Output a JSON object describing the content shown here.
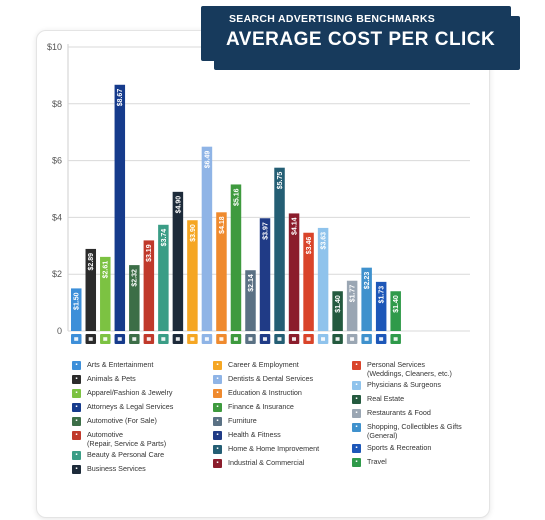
{
  "header": {
    "subtitle": "SEARCH ADVERTISING BENCHMARKS",
    "title": "AVERAGE COST PER CLICK"
  },
  "chart_data": {
    "type": "bar",
    "title": "AVERAGE COST PER CLICK",
    "subtitle": "SEARCH ADVERTISING BENCHMARKS",
    "ylim": [
      0,
      10
    ],
    "yticks": [
      0,
      2,
      4,
      6,
      8,
      10
    ],
    "ytick_labels": [
      "0",
      "$2",
      "$4",
      "$6",
      "$8",
      "$10"
    ],
    "grid": true,
    "legend_position": "bottom",
    "categories": [
      "Arts & Entertainment",
      "Animals & Pets",
      "Apparel/Fashion & Jewelry",
      "Attorneys & Legal Services",
      "Automotive (For Sale)",
      "Automotive\n(Repair, Service & Parts)",
      "Beauty & Personal Care",
      "Business Services",
      "Career & Employment",
      "Dentists & Dental Services",
      "Education & Instruction",
      "Finance & Insurance",
      "Furniture",
      "Health & Fitness",
      "Home & Home Improvement",
      "Industrial & Commercial",
      "Personal Services\n(Weddings, Cleaners, etc.)",
      "Physicians & Surgeons",
      "Real Estate",
      "Restaurants & Food",
      "Shopping, Collectibles & Gifts\n(General)",
      "Sports & Recreation",
      "Travel"
    ],
    "values": [
      1.5,
      2.89,
      2.61,
      8.67,
      2.32,
      3.19,
      3.74,
      4.9,
      3.9,
      6.49,
      4.18,
      5.16,
      2.14,
      3.97,
      5.75,
      4.14,
      3.46,
      3.63,
      1.4,
      1.77,
      2.23,
      1.73,
      1.4
    ],
    "value_labels": [
      "$1.50",
      "$2.89",
      "$2.61",
      "$8.67",
      "$2.32",
      "$3.19",
      "$3.74",
      "$4.90",
      "$3.90",
      "$6.49",
      "$4.18",
      "$5.16",
      "$2.14",
      "$3.97",
      "$5.75",
      "$4.14",
      "$3.46",
      "$3.63",
      "$1.40",
      "$1.77",
      "$2.23",
      "$1.73",
      "$1.40"
    ],
    "colors": [
      "#3d8fd9",
      "#2b2b2b",
      "#7cc242",
      "#163b8c",
      "#3c6e47",
      "#c0392b",
      "#3a9d86",
      "#1d2b3a",
      "#f5a623",
      "#8fb4e6",
      "#ef8a2e",
      "#3e9a3e",
      "#5a7184",
      "#203b86",
      "#245e74",
      "#8b1d2c",
      "#d9442a",
      "#8fc3ec",
      "#245a3f",
      "#9aa6b3",
      "#3f91cd",
      "#1d57b8",
      "#2f9a4a"
    ],
    "icons": [
      "arts-icon",
      "paw-icon",
      "hanger-icon",
      "gavel-icon",
      "car-icon",
      "wrench-icon",
      "brush-icon",
      "briefcase-icon",
      "id-card-icon",
      "tooth-icon",
      "graduation-icon",
      "coins-icon",
      "sofa-icon",
      "heartbeat-icon",
      "house-icon",
      "factory-icon",
      "service-icon",
      "medical-cross-icon",
      "building-icon",
      "utensils-icon",
      "gift-icon",
      "ball-icon",
      "plane-icon"
    ]
  }
}
